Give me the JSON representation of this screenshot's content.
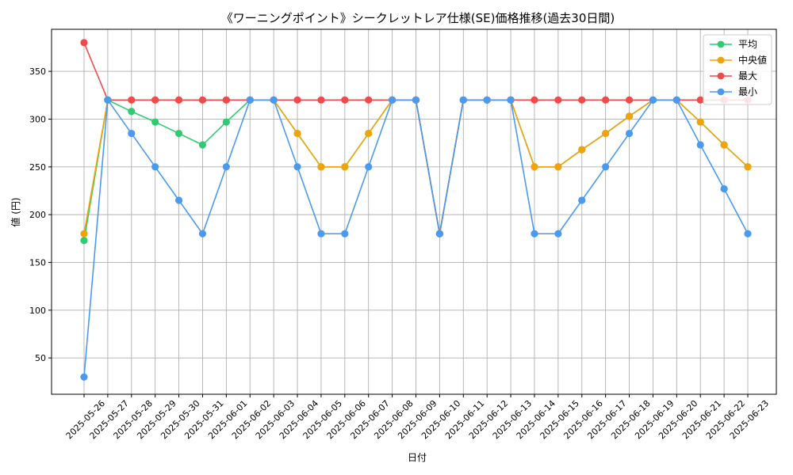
{
  "chart_data": {
    "type": "line",
    "title": "《ワーニングポイント》シークレットレア仕様(SE)価格推移(過去30日間)",
    "xlabel": "日付",
    "ylabel": "値 (円)",
    "ylim": [
      12,
      394
    ],
    "yticks": [
      50,
      100,
      150,
      200,
      250,
      300,
      350
    ],
    "grid": true,
    "legend_position": "top-right",
    "categories": [
      "2025-05-26",
      "2025-05-27",
      "2025-05-28",
      "2025-05-29",
      "2025-05-30",
      "2025-05-31",
      "2025-06-01",
      "2025-06-02",
      "2025-06-03",
      "2025-06-04",
      "2025-06-05",
      "2025-06-06",
      "2025-06-07",
      "2025-06-08",
      "2025-06-09",
      "2025-06-10",
      "2025-06-11",
      "2025-06-12",
      "2025-06-13",
      "2025-06-14",
      "2025-06-15",
      "2025-06-16",
      "2025-06-17",
      "2025-06-18",
      "2025-06-19",
      "2025-06-20",
      "2025-06-21",
      "2025-06-22",
      "2025-06-23"
    ],
    "series": [
      {
        "name": "平均",
        "color": "#2ecc71",
        "values": [
          173,
          320,
          308,
          297,
          285,
          273,
          297,
          320,
          320,
          285,
          250,
          250,
          285,
          320,
          320,
          180,
          320,
          320,
          320,
          250,
          250,
          268,
          285,
          303,
          320,
          320,
          297,
          273,
          250
        ]
      },
      {
        "name": "中央値",
        "color": "#f0a30a",
        "values": [
          180,
          320,
          320,
          320,
          320,
          320,
          320,
          320,
          320,
          285,
          250,
          250,
          285,
          320,
          320,
          180,
          320,
          320,
          320,
          250,
          250,
          268,
          285,
          303,
          320,
          320,
          297,
          273,
          250
        ]
      },
      {
        "name": "最大",
        "color": "#f04a4a",
        "values": [
          380,
          320,
          320,
          320,
          320,
          320,
          320,
          320,
          320,
          320,
          320,
          320,
          320,
          320,
          320,
          180,
          320,
          320,
          320,
          320,
          320,
          320,
          320,
          320,
          320,
          320,
          320,
          320,
          320
        ]
      },
      {
        "name": "最小",
        "color": "#4a9af0",
        "values": [
          30,
          320,
          285,
          250,
          215,
          180,
          250,
          320,
          320,
          250,
          180,
          180,
          250,
          320,
          320,
          180,
          320,
          320,
          320,
          180,
          180,
          215,
          250,
          285,
          320,
          320,
          273,
          227,
          180
        ]
      }
    ]
  }
}
